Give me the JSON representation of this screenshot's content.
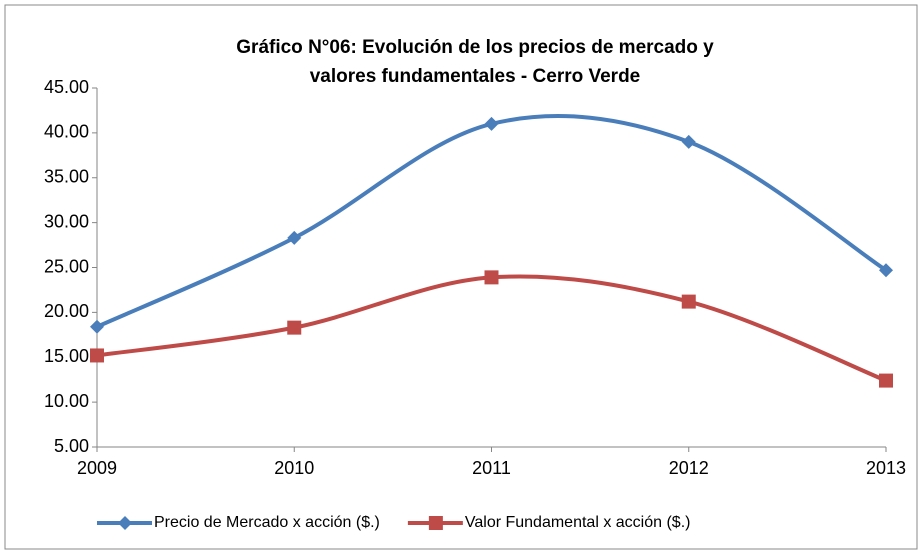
{
  "chart_data": {
    "type": "line",
    "title": [
      "Gráfico N°06: Evolución de los precios de mercado y",
      "valores fundamentales - Cerro Verde"
    ],
    "categories": [
      "2009",
      "2010",
      "2011",
      "2012",
      "2013"
    ],
    "series": [
      {
        "name": "Precio de Mercado x acción ($.)",
        "color": "#4a7ebb",
        "marker": "diamond",
        "values": [
          18.4,
          28.3,
          41.0,
          39.0,
          24.7
        ]
      },
      {
        "name": "Valor Fundamental x acción ($.)",
        "color": "#be4b48",
        "marker": "square",
        "values": [
          15.2,
          18.3,
          23.9,
          21.2,
          12.4
        ]
      }
    ],
    "ylim": [
      5,
      45
    ],
    "yticks": [
      {
        "value": 5,
        "label": "5.00"
      },
      {
        "value": 10,
        "label": "10.00"
      },
      {
        "value": 15,
        "label": "15.00"
      },
      {
        "value": 20,
        "label": "20.00"
      },
      {
        "value": 25,
        "label": "25.00"
      },
      {
        "value": 30,
        "label": "30.00"
      },
      {
        "value": 35,
        "label": "35.00"
      },
      {
        "value": 40,
        "label": "40.00"
      },
      {
        "value": 45,
        "label": "45.00"
      }
    ],
    "smooth": true,
    "grid": false,
    "legend": "bottom"
  }
}
